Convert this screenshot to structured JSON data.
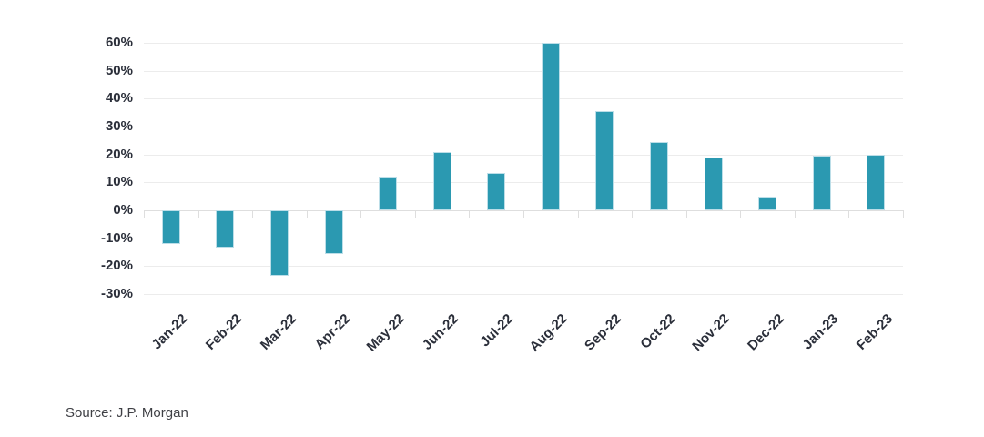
{
  "chart_data": {
    "type": "bar",
    "title": "",
    "xlabel": "",
    "ylabel": "",
    "categories": [
      "Jan-22",
      "Feb-22",
      "Mar-22",
      "Apr-22",
      "May-22",
      "Jun-22",
      "Jul-22",
      "Aug-22",
      "Sep-22",
      "Oct-22",
      "Nov-22",
      "Dec-22",
      "Jan-23",
      "Feb-23"
    ],
    "values": [
      -12,
      -13.5,
      -23.5,
      -15.5,
      12,
      21,
      13.5,
      60,
      35.5,
      24.5,
      19,
      5,
      19.5,
      20
    ],
    "ylim": [
      -30,
      60
    ],
    "ytick_step": 10,
    "ytick_suffix": "%",
    "grid": true,
    "legend": "none",
    "bar_color": "#2B99B1",
    "bar_border_color": "#BCDEE8",
    "gridline_color": "#ececec",
    "zero_line_color": "#dedede",
    "axis_label_color": "#2b2f3a"
  },
  "source": {
    "label": "Source: J.P. Morgan"
  }
}
